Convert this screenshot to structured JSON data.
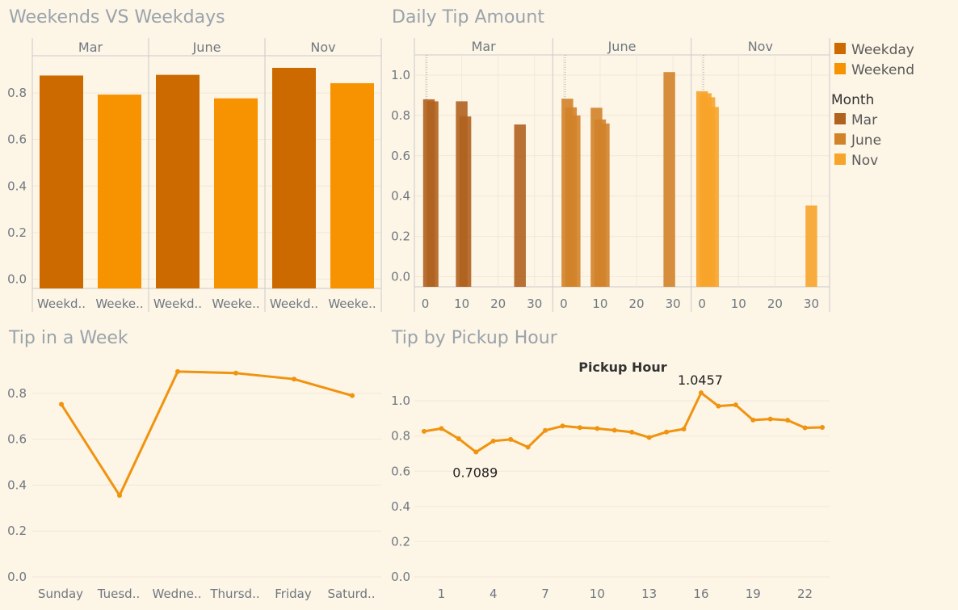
{
  "colors": {
    "weekday": "#cc6a00",
    "weekend": "#f79200",
    "mar": "#b0621f",
    "june": "#d2832a",
    "nov": "#f7a42a",
    "line": "#f0930f",
    "grid": "#f1e8d8",
    "frame": "#cccccc"
  },
  "legend": {
    "color_items": [
      "Weekday",
      "Weekend"
    ],
    "month_title": "Month",
    "month_items": [
      "Mar",
      "June",
      "Nov"
    ]
  },
  "chart_data": [
    {
      "type": "bar",
      "title": "Weekends VS Weekdays",
      "panels": [
        "Mar",
        "June",
        "Nov"
      ],
      "categories": [
        "Weekd..",
        "Weeke.."
      ],
      "values": [
        [
          0.875,
          0.793
        ],
        [
          0.878,
          0.777
        ],
        [
          0.908,
          0.842
        ]
      ],
      "ylim": [
        -0.04,
        0.96
      ],
      "yticks": [
        "0.0",
        "0.2",
        "0.4",
        "0.6",
        "0.8"
      ]
    },
    {
      "type": "bar",
      "title": "Daily Tip Amount",
      "panels": [
        "Mar",
        "June",
        "Nov"
      ],
      "xticks": [
        "0",
        "10",
        "20",
        "30"
      ],
      "xlim": [
        -3,
        35
      ],
      "ylim": [
        -0.05,
        1.1
      ],
      "yticks": [
        "0.0",
        "0.2",
        "0.4",
        "0.6",
        "0.8",
        "1.0"
      ],
      "series": [
        {
          "panel": "Mar",
          "bars": [
            {
              "day": 1,
              "value": 0.88
            },
            {
              "day": 2,
              "value": 0.87
            },
            {
              "day": 10,
              "value": 0.87
            },
            {
              "day": 11,
              "value": 0.795
            },
            {
              "day": 26,
              "value": 0.755
            }
          ]
        },
        {
          "panel": "June",
          "bars": [
            {
              "day": 1,
              "value": 0.883
            },
            {
              "day": 2,
              "value": 0.84
            },
            {
              "day": 3,
              "value": 0.8
            },
            {
              "day": 9,
              "value": 0.838
            },
            {
              "day": 10,
              "value": 0.78
            },
            {
              "day": 11,
              "value": 0.76
            },
            {
              "day": 29,
              "value": 1.015
            }
          ]
        },
        {
          "panel": "Nov",
          "bars": [
            {
              "day": 0,
              "value": 0.92
            },
            {
              "day": 1,
              "value": 0.91
            },
            {
              "day": 2,
              "value": 0.89
            },
            {
              "day": 3,
              "value": 0.842
            },
            {
              "day": 30,
              "value": 0.353
            }
          ]
        }
      ]
    },
    {
      "type": "line",
      "title": "Tip in a Week",
      "categories": [
        "Sunday",
        "Tuesd..",
        "Wedne..",
        "Thursd..",
        "Friday",
        "Saturd.."
      ],
      "values": [
        0.752,
        0.355,
        0.895,
        0.888,
        0.862,
        0.79
      ],
      "ylim": [
        0,
        1.0
      ],
      "yticks": [
        "0.0",
        "0.2",
        "0.4",
        "0.6",
        "0.8"
      ]
    },
    {
      "type": "line",
      "title": "Tip by Pickup Hour",
      "subtitle": "Pickup Hour",
      "x": [
        0,
        1,
        2,
        3,
        4,
        5,
        6,
        7,
        8,
        9,
        10,
        11,
        12,
        13,
        14,
        15,
        16,
        17,
        18,
        19,
        20,
        21,
        22,
        23
      ],
      "values": [
        0.827,
        0.843,
        0.785,
        0.7089,
        0.772,
        0.781,
        0.737,
        0.832,
        0.857,
        0.848,
        0.843,
        0.833,
        0.822,
        0.792,
        0.823,
        0.84,
        1.0457,
        0.97,
        0.977,
        0.891,
        0.897,
        0.89,
        0.847,
        0.849
      ],
      "xticks": [
        "1",
        "4",
        "7",
        "10",
        "13",
        "16",
        "19",
        "22"
      ],
      "xlim": [
        -0.5,
        23.5
      ],
      "ylim": [
        0,
        1.12
      ],
      "yticks": [
        "0.0",
        "0.2",
        "0.4",
        "0.6",
        "0.8",
        "1.0"
      ],
      "annotations": [
        {
          "label": "0.7089",
          "index": 3
        },
        {
          "label": "1.0457",
          "index": 16
        }
      ]
    }
  ]
}
